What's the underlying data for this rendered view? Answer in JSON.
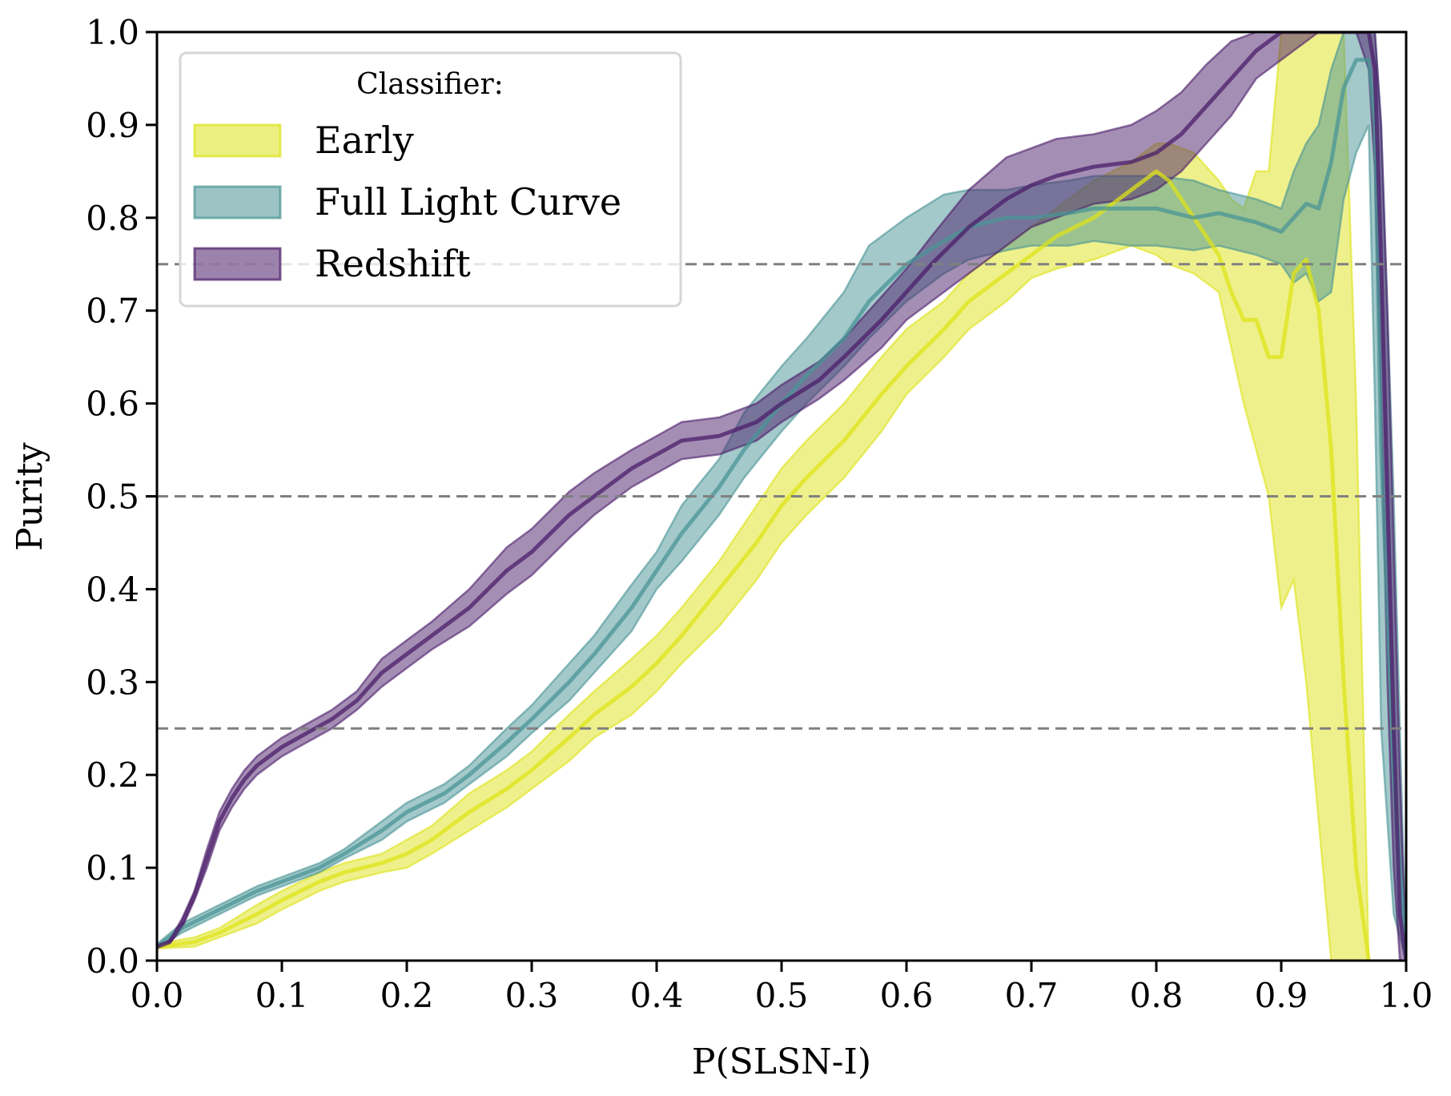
{
  "chart_data": {
    "type": "line",
    "title": "",
    "xlabel": "P(SLSN-I)",
    "ylabel": "Purity",
    "xlim": [
      0.0,
      1.0
    ],
    "ylim": [
      0.0,
      1.0
    ],
    "xticks": [
      "0.0",
      "0.1",
      "0.2",
      "0.3",
      "0.4",
      "0.5",
      "0.6",
      "0.7",
      "0.8",
      "0.9",
      "1.0"
    ],
    "yticks": [
      "0.0",
      "0.1",
      "0.2",
      "0.3",
      "0.4",
      "0.5",
      "0.6",
      "0.7",
      "0.8",
      "0.9",
      "1.0"
    ],
    "grid": false,
    "reference_lines": [
      0.25,
      0.5,
      0.75
    ],
    "legend": {
      "title": "Classifier:",
      "position": "top-left"
    },
    "series": [
      {
        "name": "Early",
        "color": "#dde318",
        "x": [
          0.0,
          0.03,
          0.05,
          0.08,
          0.1,
          0.13,
          0.15,
          0.18,
          0.2,
          0.22,
          0.25,
          0.28,
          0.3,
          0.33,
          0.35,
          0.38,
          0.4,
          0.42,
          0.45,
          0.48,
          0.5,
          0.52,
          0.55,
          0.58,
          0.6,
          0.63,
          0.65,
          0.68,
          0.7,
          0.72,
          0.75,
          0.78,
          0.8,
          0.81,
          0.83,
          0.85,
          0.86,
          0.87,
          0.88,
          0.89,
          0.9,
          0.91,
          0.92,
          0.93,
          0.94,
          0.95,
          0.96,
          0.97
        ],
        "y": [
          0.015,
          0.02,
          0.03,
          0.05,
          0.065,
          0.085,
          0.095,
          0.105,
          0.115,
          0.13,
          0.16,
          0.185,
          0.205,
          0.24,
          0.265,
          0.295,
          0.32,
          0.35,
          0.4,
          0.45,
          0.49,
          0.52,
          0.56,
          0.61,
          0.64,
          0.68,
          0.71,
          0.74,
          0.76,
          0.78,
          0.8,
          0.83,
          0.85,
          0.84,
          0.8,
          0.76,
          0.72,
          0.69,
          0.69,
          0.65,
          0.65,
          0.74,
          0.755,
          0.7,
          0.55,
          0.3,
          0.1,
          0.0
        ],
        "lower": [
          0.013,
          0.015,
          0.025,
          0.04,
          0.055,
          0.075,
          0.085,
          0.095,
          0.1,
          0.115,
          0.14,
          0.165,
          0.185,
          0.215,
          0.24,
          0.265,
          0.29,
          0.32,
          0.36,
          0.41,
          0.45,
          0.48,
          0.52,
          0.57,
          0.61,
          0.65,
          0.68,
          0.71,
          0.735,
          0.745,
          0.755,
          0.77,
          0.76,
          0.75,
          0.74,
          0.72,
          0.66,
          0.6,
          0.55,
          0.5,
          0.38,
          0.41,
          0.3,
          0.15,
          0.0,
          0.0,
          0.0,
          0.0
        ],
        "upper": [
          0.018,
          0.025,
          0.035,
          0.06,
          0.075,
          0.095,
          0.105,
          0.115,
          0.13,
          0.145,
          0.18,
          0.205,
          0.225,
          0.265,
          0.29,
          0.325,
          0.35,
          0.38,
          0.43,
          0.49,
          0.53,
          0.56,
          0.6,
          0.65,
          0.68,
          0.71,
          0.74,
          0.77,
          0.79,
          0.81,
          0.84,
          0.86,
          0.88,
          0.88,
          0.87,
          0.84,
          0.82,
          0.81,
          0.85,
          0.85,
          1.0,
          1.0,
          1.0,
          1.0,
          1.0,
          1.0,
          0.6,
          0.0
        ]
      },
      {
        "name": "Full Light Curve",
        "color": "#4a9496",
        "x": [
          0.0,
          0.02,
          0.05,
          0.08,
          0.1,
          0.13,
          0.15,
          0.18,
          0.2,
          0.23,
          0.25,
          0.28,
          0.3,
          0.33,
          0.35,
          0.38,
          0.4,
          0.42,
          0.45,
          0.47,
          0.5,
          0.52,
          0.55,
          0.57,
          0.6,
          0.63,
          0.65,
          0.68,
          0.7,
          0.73,
          0.75,
          0.78,
          0.8,
          0.83,
          0.85,
          0.88,
          0.9,
          0.91,
          0.92,
          0.93,
          0.94,
          0.95,
          0.96,
          0.97,
          0.975,
          0.98,
          0.99,
          1.0
        ],
        "y": [
          0.015,
          0.035,
          0.055,
          0.075,
          0.085,
          0.1,
          0.115,
          0.14,
          0.16,
          0.18,
          0.2,
          0.235,
          0.26,
          0.3,
          0.33,
          0.38,
          0.42,
          0.46,
          0.51,
          0.55,
          0.6,
          0.63,
          0.67,
          0.71,
          0.75,
          0.775,
          0.79,
          0.8,
          0.8,
          0.805,
          0.81,
          0.81,
          0.81,
          0.8,
          0.805,
          0.795,
          0.785,
          0.8,
          0.815,
          0.81,
          0.86,
          0.94,
          0.97,
          0.97,
          0.9,
          0.55,
          0.2,
          0.0
        ],
        "lower": [
          0.013,
          0.03,
          0.05,
          0.07,
          0.08,
          0.095,
          0.11,
          0.13,
          0.15,
          0.17,
          0.19,
          0.22,
          0.245,
          0.28,
          0.31,
          0.355,
          0.4,
          0.43,
          0.48,
          0.52,
          0.57,
          0.6,
          0.64,
          0.67,
          0.71,
          0.74,
          0.755,
          0.765,
          0.77,
          0.77,
          0.775,
          0.77,
          0.77,
          0.765,
          0.77,
          0.76,
          0.75,
          0.73,
          0.74,
          0.71,
          0.72,
          0.82,
          0.87,
          0.9,
          0.6,
          0.25,
          0.05,
          0.0
        ],
        "upper": [
          0.018,
          0.04,
          0.06,
          0.08,
          0.09,
          0.105,
          0.12,
          0.15,
          0.17,
          0.19,
          0.21,
          0.25,
          0.275,
          0.32,
          0.35,
          0.405,
          0.44,
          0.49,
          0.54,
          0.59,
          0.64,
          0.67,
          0.72,
          0.77,
          0.8,
          0.825,
          0.83,
          0.83,
          0.835,
          0.84,
          0.845,
          0.845,
          0.845,
          0.84,
          0.83,
          0.82,
          0.81,
          0.85,
          0.88,
          0.9,
          0.96,
          1.0,
          1.0,
          1.0,
          1.0,
          0.9,
          0.5,
          0.0
        ]
      },
      {
        "name": "Redshift",
        "color": "#4b1d6a",
        "x": [
          0.0,
          0.01,
          0.02,
          0.03,
          0.04,
          0.05,
          0.06,
          0.07,
          0.08,
          0.09,
          0.1,
          0.12,
          0.14,
          0.16,
          0.18,
          0.2,
          0.22,
          0.25,
          0.28,
          0.3,
          0.33,
          0.35,
          0.38,
          0.4,
          0.42,
          0.45,
          0.48,
          0.5,
          0.53,
          0.55,
          0.58,
          0.6,
          0.62,
          0.65,
          0.68,
          0.7,
          0.72,
          0.75,
          0.78,
          0.8,
          0.82,
          0.84,
          0.86,
          0.88,
          0.9,
          0.93,
          0.96,
          0.97,
          0.975,
          0.98,
          0.985,
          0.99,
          0.995,
          1.0
        ],
        "y": [
          0.015,
          0.02,
          0.04,
          0.07,
          0.11,
          0.15,
          0.175,
          0.195,
          0.21,
          0.22,
          0.23,
          0.245,
          0.26,
          0.28,
          0.31,
          0.33,
          0.35,
          0.38,
          0.42,
          0.44,
          0.48,
          0.5,
          0.53,
          0.545,
          0.56,
          0.565,
          0.58,
          0.6,
          0.625,
          0.65,
          0.69,
          0.72,
          0.75,
          0.79,
          0.82,
          0.835,
          0.845,
          0.855,
          0.86,
          0.87,
          0.89,
          0.92,
          0.95,
          0.98,
          1.0,
          1.0,
          1.0,
          1.0,
          0.96,
          0.75,
          0.5,
          0.25,
          0.05,
          0.0
        ],
        "lower": [
          0.013,
          0.018,
          0.035,
          0.065,
          0.1,
          0.14,
          0.165,
          0.185,
          0.2,
          0.21,
          0.22,
          0.235,
          0.25,
          0.27,
          0.295,
          0.315,
          0.335,
          0.36,
          0.395,
          0.415,
          0.455,
          0.48,
          0.51,
          0.525,
          0.54,
          0.545,
          0.56,
          0.58,
          0.605,
          0.625,
          0.66,
          0.69,
          0.71,
          0.74,
          0.77,
          0.79,
          0.8,
          0.815,
          0.82,
          0.83,
          0.85,
          0.88,
          0.91,
          0.95,
          0.97,
          1.0,
          1.0,
          0.96,
          0.85,
          0.6,
          0.3,
          0.1,
          0.0,
          0.0
        ],
        "upper": [
          0.017,
          0.022,
          0.045,
          0.075,
          0.12,
          0.16,
          0.185,
          0.205,
          0.22,
          0.23,
          0.24,
          0.255,
          0.27,
          0.29,
          0.325,
          0.345,
          0.365,
          0.4,
          0.445,
          0.465,
          0.505,
          0.525,
          0.55,
          0.565,
          0.58,
          0.585,
          0.6,
          0.62,
          0.645,
          0.67,
          0.715,
          0.745,
          0.78,
          0.83,
          0.865,
          0.875,
          0.885,
          0.89,
          0.9,
          0.915,
          0.935,
          0.965,
          0.99,
          1.0,
          1.0,
          1.0,
          1.0,
          1.0,
          1.0,
          0.9,
          0.7,
          0.45,
          0.2,
          0.0
        ]
      }
    ]
  }
}
